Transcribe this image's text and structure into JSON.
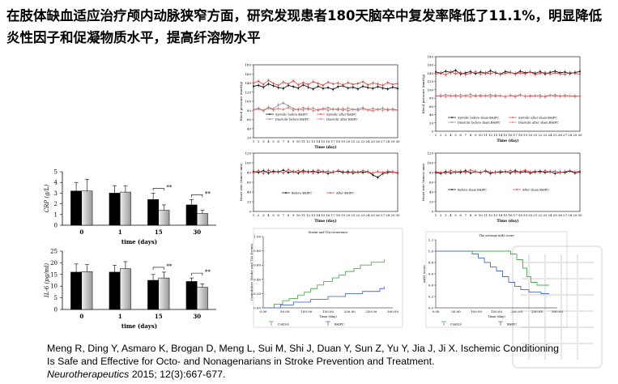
{
  "slide": {
    "title": "在肢体缺血适应治疗颅内动脉狭窄方面，研究发现患者180天脑卒中复发率降低了11.1%，明显降低炎性因子和促凝物质水平，提高纤溶物水平",
    "reference_text": "Meng R, Ding Y, Asmaro K, Brogan D, Meng L, Sui M, Shi J, Duan Y, Sun Z, Yu Y, Jia J, Ji X. Ischemic Conditioning Is Safe and Effective for Octo- and Nonagenarians in Stroke Prevention and Treatment.",
    "reference_journal": "Neurotherapeutics",
    "reference_citation": " 2015; 12(3):667-677."
  },
  "chart_data": [
    {
      "id": "crp",
      "type": "bar",
      "categories": [
        "0",
        "1",
        "15",
        "30"
      ],
      "xlabel": "time (days)",
      "ylabel": "CRP (g/L)",
      "ylim": [
        0,
        5
      ],
      "yticks": [
        "0",
        "1",
        "2",
        "3",
        "4",
        "5"
      ],
      "series": [
        {
          "color": "#000000",
          "values": [
            3.2,
            3.0,
            2.4,
            1.9
          ],
          "errors": [
            0.8,
            0.7,
            0.6,
            0.5
          ]
        },
        {
          "color": "#c8c8c8",
          "values": [
            3.2,
            3.1,
            1.4,
            1.1
          ],
          "errors": [
            1.1,
            0.6,
            0.5,
            0.3
          ]
        }
      ],
      "annotations": [
        {
          "at": "15",
          "text": "**"
        },
        {
          "at": "30",
          "text": "**"
        }
      ]
    },
    {
      "id": "il6",
      "type": "bar",
      "categories": [
        "0",
        "1",
        "15",
        "30"
      ],
      "xlabel": "time (days)",
      "ylabel": "IL-6 (pg/ml)",
      "ylim": [
        0,
        25
      ],
      "yticks": [
        "0",
        "5",
        "10",
        "15",
        "20",
        "25"
      ],
      "series": [
        {
          "color": "#000000",
          "values": [
            16,
            16,
            12.5,
            12
          ],
          "errors": [
            3.5,
            3,
            2.5,
            1.5
          ]
        },
        {
          "color": "#c8c8c8",
          "values": [
            16.2,
            17.5,
            13.5,
            9.5
          ],
          "errors": [
            3,
            3,
            2.5,
            1.5
          ]
        }
      ],
      "annotations": [
        {
          "at": "15",
          "text": "**"
        },
        {
          "at": "30",
          "text": "**"
        }
      ]
    },
    {
      "id": "bp-before-after",
      "type": "line",
      "xlabel": "Time (day)",
      "ylabel": "Blood pressure (mmHg)",
      "ylim": [
        20,
        180
      ],
      "yticks": [
        "20",
        "40",
        "60",
        "80",
        "100",
        "120",
        "140",
        "160",
        "180"
      ],
      "x": [
        1,
        2,
        3,
        4,
        5,
        6,
        7,
        8,
        9,
        10,
        11,
        12,
        13,
        14,
        15,
        16,
        17,
        18,
        19,
        20,
        21,
        22,
        23,
        24,
        25,
        26,
        27,
        28,
        29,
        30
      ],
      "series": [
        {
          "name": "Systolic before BAIPC",
          "color": "#000000",
          "values": [
            133,
            135,
            131,
            138,
            134,
            130,
            128,
            135,
            132,
            129,
            136,
            131,
            127,
            133,
            128,
            130,
            126,
            132,
            134,
            129,
            131,
            127,
            133,
            130,
            128,
            132,
            129,
            127,
            131,
            128
          ]
        },
        {
          "name": "Systolic after BAIPC",
          "color": "#e03c3c",
          "values": [
            140,
            144,
            137,
            146,
            139,
            135,
            142,
            138,
            145,
            136,
            141,
            137,
            143,
            139,
            135,
            142,
            138,
            140,
            136,
            141,
            137,
            139,
            143,
            136,
            140,
            138,
            135,
            141,
            137,
            139
          ]
        },
        {
          "name": "Diastolic before BAIPC",
          "color": "#888888",
          "values": [
            82,
            85,
            80,
            87,
            83,
            92,
            96,
            90,
            84,
            81,
            86,
            82,
            85,
            80,
            83,
            86,
            82,
            84,
            80,
            85,
            82,
            83,
            86,
            81,
            84,
            82,
            85,
            80,
            83,
            81
          ]
        },
        {
          "name": "Diastolic after BAIPC",
          "color": "#e87070",
          "values": [
            80,
            83,
            79,
            85,
            81,
            84,
            82,
            86,
            80,
            83,
            81,
            85,
            79,
            82,
            84,
            80,
            83,
            81,
            84,
            79,
            82,
            80,
            83,
            81,
            79,
            82,
            80,
            83,
            81,
            80
          ]
        }
      ]
    },
    {
      "id": "bp-sham",
      "type": "line",
      "xlabel": "Time (day)",
      "ylabel": "Blood pressure (mmHg)",
      "ylim": [
        0,
        180
      ],
      "yticks": [
        "0",
        "20",
        "40",
        "60",
        "80",
        "100",
        "120",
        "140",
        "160",
        "180"
      ],
      "x": [
        1,
        2,
        3,
        4,
        5,
        6,
        7,
        8,
        9,
        10,
        11,
        12,
        13,
        14,
        15,
        16,
        17,
        18,
        19,
        20,
        21,
        22,
        23,
        24,
        25,
        26,
        27,
        28,
        29,
        30
      ],
      "series": [
        {
          "name": "Systolic before sham BAIPC",
          "color": "#000000",
          "values": [
            143,
            140,
            145,
            142,
            147,
            138,
            141,
            144,
            139,
            143,
            140,
            146,
            141,
            138,
            144,
            142,
            139,
            145,
            141,
            143,
            140,
            144,
            138,
            142,
            145,
            141,
            143,
            139,
            142,
            144
          ]
        },
        {
          "name": "Systolic after sham BAIPC",
          "color": "#e03c3c",
          "values": [
            138,
            141,
            136,
            143,
            139,
            142,
            137,
            140,
            144,
            138,
            141,
            139,
            143,
            137,
            140,
            142,
            138,
            141,
            139,
            143,
            137,
            140,
            142,
            138,
            141,
            139,
            137,
            142,
            140,
            138
          ]
        },
        {
          "name": "Diastolic before sham BAIPC",
          "color": "#888888",
          "values": [
            86,
            84,
            88,
            85,
            87,
            83,
            86,
            89,
            84,
            87,
            85,
            88,
            84,
            86,
            83,
            87,
            85,
            88,
            84,
            86,
            85,
            87,
            83,
            86,
            88,
            84,
            87,
            85,
            86,
            84
          ]
        },
        {
          "name": "Diastolic after sham BAIPC",
          "color": "#e87070",
          "values": [
            84,
            87,
            83,
            86,
            84,
            88,
            85,
            83,
            87,
            84,
            86,
            83,
            87,
            85,
            84,
            86,
            83,
            87,
            85,
            84,
            86,
            83,
            85,
            87,
            84,
            86,
            84,
            85,
            83,
            86
          ]
        }
      ]
    },
    {
      "id": "hr-before-after",
      "type": "line",
      "xlabel": "Time (day)",
      "ylabel": "Heart rate (times/ min)",
      "ylim": [
        0,
        120
      ],
      "yticks": [
        "0",
        "20",
        "40",
        "60",
        "80",
        "100",
        "120"
      ],
      "x": [
        1,
        2,
        3,
        4,
        5,
        6,
        7,
        8,
        9,
        10,
        11,
        12,
        13,
        14,
        15,
        16,
        17,
        18,
        19,
        20,
        21,
        22,
        23,
        24,
        25,
        26,
        27,
        28,
        29,
        30
      ],
      "series": [
        {
          "name": "Before BAIPC",
          "color": "#000000",
          "values": [
            82,
            80,
            84,
            79,
            83,
            81,
            85,
            80,
            82,
            79,
            84,
            81,
            83,
            80,
            82,
            78,
            81,
            83,
            80,
            82,
            79,
            81,
            80,
            82,
            75,
            70,
            78,
            80,
            81,
            79
          ]
        },
        {
          "name": "After BAIPC",
          "color": "#e03c3c",
          "values": [
            80,
            84,
            78,
            85,
            80,
            83,
            79,
            86,
            81,
            84,
            80,
            83,
            79,
            85,
            81,
            83,
            80,
            84,
            82,
            79,
            83,
            80,
            84,
            81,
            79,
            82,
            80,
            83,
            81,
            80
          ]
        }
      ]
    },
    {
      "id": "hr-sham",
      "type": "line",
      "xlabel": "Time (day)",
      "ylabel": "Heart rate (times/ min)",
      "ylim": [
        0,
        120
      ],
      "yticks": [
        "0",
        "20",
        "40",
        "60",
        "80",
        "100",
        "120"
      ],
      "x": [
        1,
        2,
        3,
        4,
        5,
        6,
        7,
        8,
        9,
        10,
        11,
        12,
        13,
        14,
        15,
        16,
        17,
        18,
        19,
        20,
        21,
        22,
        23,
        24,
        25,
        26,
        27,
        28,
        29,
        30
      ],
      "series": [
        {
          "name": "Before sham BAIPC",
          "color": "#000000",
          "values": [
            80,
            78,
            82,
            79,
            81,
            80,
            84,
            79,
            82,
            80,
            83,
            78,
            81,
            80,
            82,
            79,
            84,
            80,
            82,
            79,
            81,
            83,
            80,
            82,
            78,
            81,
            80,
            83,
            79,
            81
          ]
        },
        {
          "name": "After sham BAIPC",
          "color": "#e03c3c",
          "values": [
            82,
            80,
            79,
            84,
            81,
            83,
            80,
            85,
            82,
            79,
            84,
            81,
            80,
            83,
            81,
            84,
            80,
            82,
            85,
            81,
            83,
            80,
            84,
            81,
            83,
            80,
            82,
            84,
            81,
            83
          ]
        }
      ]
    },
    {
      "id": "stroke-tia",
      "type": "line",
      "title": "Stroke and TIA recurrence",
      "xlabel": "Time (day)",
      "ylabel": "Cumulative Stroke and TIA Events",
      "ylim": [
        0,
        1
      ],
      "yticks": [
        "0.00",
        "0.20",
        "0.40",
        "0.60",
        "0.80",
        "1.00"
      ],
      "xticks": [
        "0.00",
        "50.00",
        "100.00",
        "150.00",
        "200.00",
        "250.00",
        "300.00"
      ],
      "xlim": [
        0,
        300
      ],
      "series": [
        {
          "name": "Control",
          "color": "#4caf50",
          "x": [
            0,
            25,
            45,
            60,
            80,
            95,
            110,
            125,
            140,
            160,
            175,
            190,
            210,
            225,
            250,
            280
          ],
          "values": [
            0,
            0.05,
            0.1,
            0.13,
            0.18,
            0.22,
            0.27,
            0.32,
            0.37,
            0.42,
            0.46,
            0.51,
            0.55,
            0.6,
            0.64,
            0.68
          ]
        },
        {
          "name": "BAIPC",
          "color": "#4a6cd4",
          "x": [
            0,
            40,
            70,
            110,
            150,
            190,
            230,
            270,
            280
          ],
          "values": [
            0,
            0.04,
            0.08,
            0.12,
            0.16,
            0.2,
            0.23,
            0.27,
            0.3
          ]
        }
      ]
    },
    {
      "id": "mrs",
      "type": "line",
      "title": "The average mRS score",
      "xlabel": "Time (day)",
      "ylabel": "mRS score",
      "ylim": [
        0,
        1.2
      ],
      "yticks": [
        "0.0",
        "0.2",
        "0.4",
        "0.6",
        "0.8",
        "1.0",
        "1.2"
      ],
      "xticks": [
        "0.00",
        "50.00",
        "100.00",
        "150.00",
        "200.00",
        "250.00",
        "300.00"
      ],
      "xlim": [
        0,
        300
      ],
      "series": [
        {
          "name": "Control",
          "color": "#4caf50",
          "x": [
            0,
            40,
            80,
            120,
            160,
            185,
            200,
            215,
            225,
            235,
            250,
            280
          ],
          "values": [
            1.0,
            1.0,
            1.0,
            1.0,
            1.0,
            0.95,
            0.85,
            0.7,
            0.55,
            0.45,
            0.4,
            0.4
          ]
        },
        {
          "name": "BAIPC",
          "color": "#4a6cd4",
          "x": [
            0,
            70,
            90,
            105,
            120,
            135,
            150,
            165,
            180,
            195,
            210,
            230,
            260,
            280
          ],
          "values": [
            1.0,
            1.0,
            0.95,
            0.88,
            0.8,
            0.72,
            0.65,
            0.55,
            0.45,
            0.38,
            0.32,
            0.28,
            0.25,
            0.25
          ]
        }
      ]
    }
  ]
}
